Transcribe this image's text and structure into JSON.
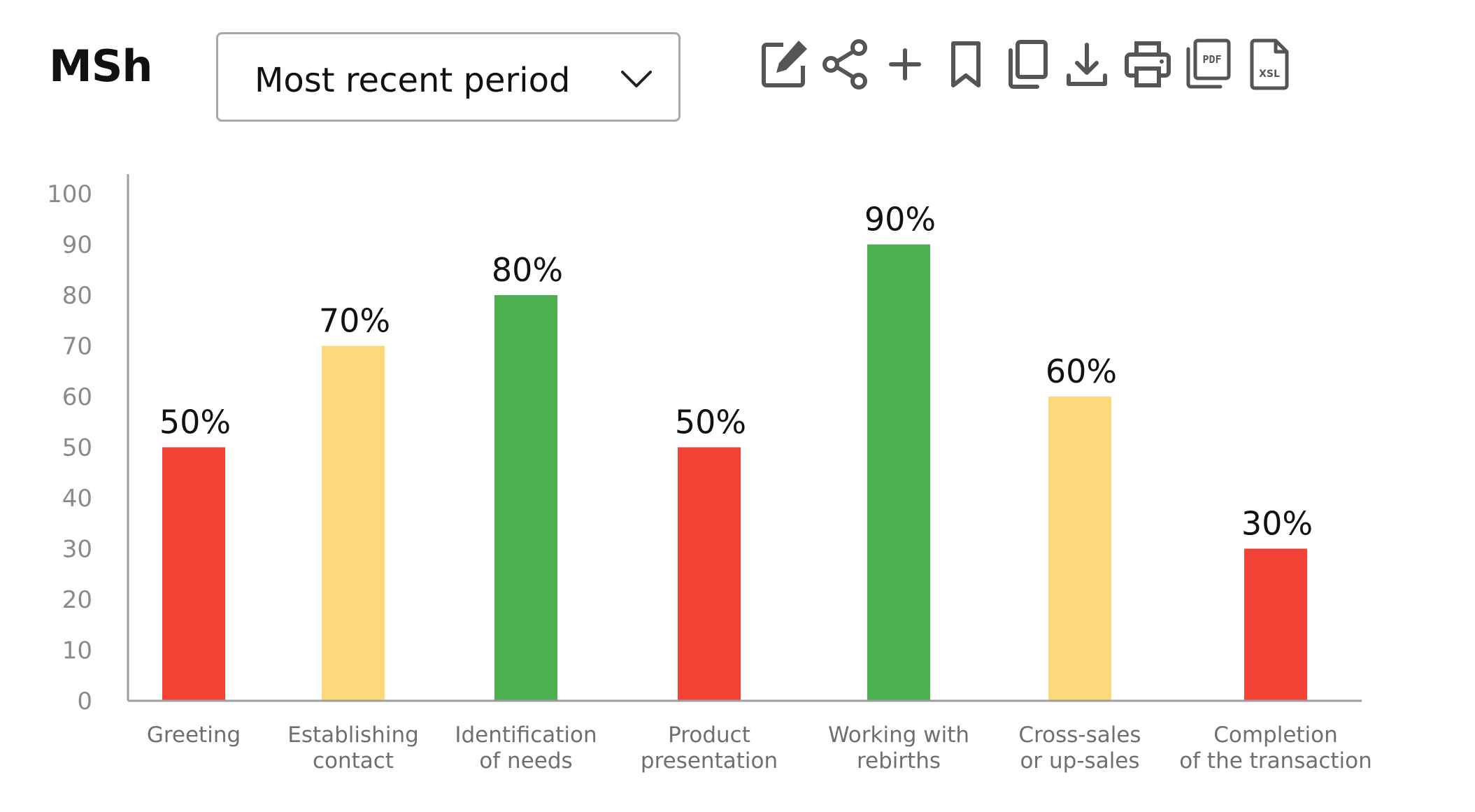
{
  "header": {
    "title": "MSh",
    "period_select": {
      "value": "Most recent period"
    },
    "toolbar": [
      {
        "name": "edit-icon"
      },
      {
        "name": "share-icon"
      },
      {
        "name": "add-icon"
      },
      {
        "name": "bookmark-icon"
      },
      {
        "name": "copy-icon"
      },
      {
        "name": "download-icon"
      },
      {
        "name": "print-icon"
      },
      {
        "name": "pdf-icon",
        "label": "PDF"
      },
      {
        "name": "xsl-icon",
        "label": "XSL"
      }
    ]
  },
  "colors": {
    "red": "#f44336",
    "yellow": "#fed97b",
    "green": "#4caf50",
    "axis": "#9e9e9e",
    "icon": "#555555"
  },
  "chart_data": {
    "type": "bar",
    "title": "",
    "xlabel": "",
    "ylabel": "",
    "ylim": [
      0,
      100
    ],
    "yticks": [
      0,
      10,
      20,
      30,
      40,
      50,
      60,
      70,
      80,
      90,
      100
    ],
    "grid": false,
    "categories": [
      [
        "Greeting"
      ],
      [
        "Establishing",
        "contact"
      ],
      [
        "Identification",
        "of needs"
      ],
      [
        "Product",
        "presentation"
      ],
      [
        "Working with",
        "rebirths"
      ],
      [
        "Cross-sales",
        "or up-sales"
      ],
      [
        "Completion",
        "of the transaction"
      ]
    ],
    "values": [
      50,
      70,
      80,
      50,
      90,
      60,
      30
    ],
    "value_labels": [
      "50%",
      "70%",
      "80%",
      "50%",
      "90%",
      "60%",
      "30%"
    ],
    "bar_colors": [
      "red",
      "yellow",
      "green",
      "red",
      "green",
      "yellow",
      "red"
    ]
  }
}
